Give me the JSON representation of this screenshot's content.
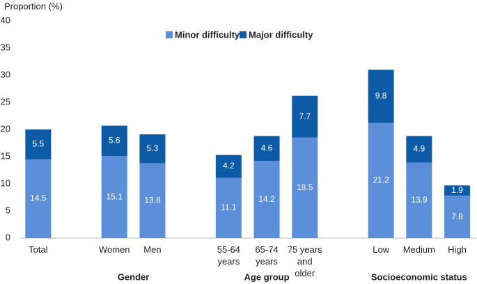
{
  "chart_data": {
    "type": "stacked-bar",
    "y_label": "Proportion (%)",
    "categories": [
      "Total",
      null,
      "Women",
      "Men",
      null,
      "55-64 years",
      "65-74 years",
      "75 years and older",
      null,
      "Low",
      "Medium",
      "High"
    ],
    "groups": [
      {
        "label": "Gender",
        "categories": [
          2,
          3
        ]
      },
      {
        "label": "Age group",
        "categories": [
          5,
          6,
          7
        ]
      },
      {
        "label": "Socioeconomic status",
        "categories": [
          9,
          10,
          11
        ]
      }
    ],
    "series": [
      {
        "name": "Minor difficulty",
        "color": "#5b8fd9",
        "values": [
          14.5,
          null,
          15.1,
          13.8,
          null,
          11.1,
          14.2,
          18.5,
          null,
          21.2,
          13.9,
          7.8
        ]
      },
      {
        "name": "Major difficulty",
        "color": "#0d5aa7",
        "values": [
          5.5,
          null,
          5.6,
          5.3,
          null,
          4.2,
          4.6,
          7.7,
          null,
          9.8,
          4.9,
          1.9
        ]
      }
    ],
    "ylim": [
      0,
      40
    ],
    "yticks": [
      0,
      5,
      10,
      15,
      20,
      25,
      30,
      35,
      40
    ],
    "grid": false
  }
}
